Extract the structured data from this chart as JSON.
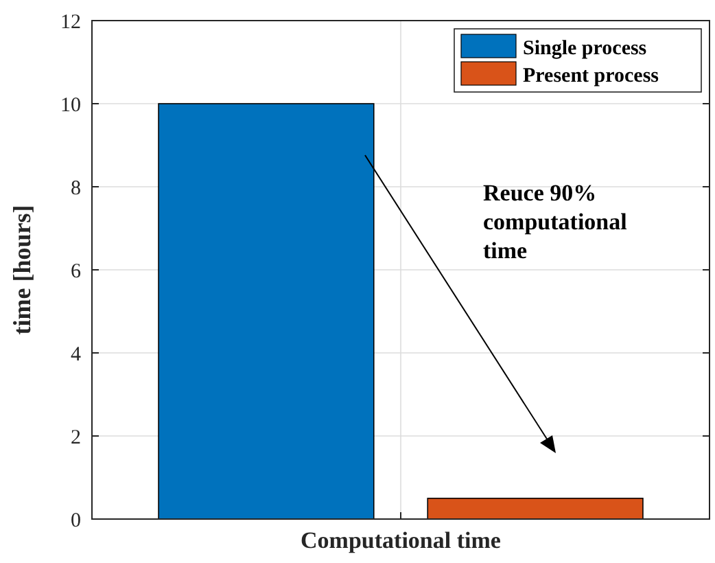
{
  "chart_data": {
    "type": "bar",
    "ylabel": "time [hours]",
    "categories": [
      "Computational time"
    ],
    "series": [
      {
        "name": "Single process",
        "color": "#0072bd",
        "values": [
          10
        ]
      },
      {
        "name": "Present process",
        "color": "#d95319",
        "values": [
          0.5
        ]
      }
    ],
    "ylim": [
      0,
      12
    ],
    "yticks": [
      0,
      2,
      4,
      6,
      8,
      10,
      12
    ],
    "grid": true,
    "legend": "top right",
    "annotations": [
      "Reuce 90%\ncomputational\ntime"
    ]
  }
}
